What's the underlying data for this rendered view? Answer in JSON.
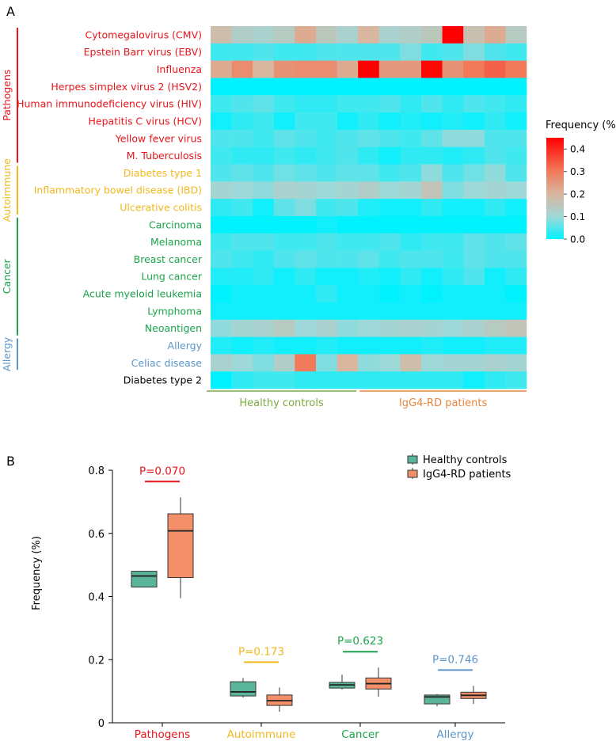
{
  "panels": {
    "a_label": "A",
    "b_label": "B"
  },
  "colors": {
    "pathogens": "#e8151b",
    "autoimmune": "#f2b81d",
    "cancer": "#1aa34a",
    "allergy": "#5b95c8",
    "other": "#000000",
    "healthy_group": "#7aaa3e",
    "igg4_group": "#e8853d",
    "box_healthy": "#5bb59a",
    "box_igg4": "#f3906a"
  },
  "chart_data": [
    {
      "type": "heatmap",
      "title": "",
      "colorbar": {
        "title": "Frequency (%)",
        "ticks": [
          0.0,
          0.1,
          0.2,
          0.3,
          0.4
        ],
        "tick_labels": [
          "0.0",
          "0.1",
          "0.2",
          "0.3",
          "0.4"
        ],
        "range": [
          0,
          0.45
        ]
      },
      "rows": [
        "Cytomegalovirus (CMV)",
        "Epstein Barr virus (EBV)",
        "Influenza",
        "Herpes simplex virus 2 (HSV2)",
        "Human immunodeficiency virus (HIV)",
        "Hepatitis C virus (HCV)",
        "Yellow fever virus",
        "M. Tuberculosis",
        "Diabetes type 1",
        "Inflammatory bowel disease (IBD)",
        "Ulcerative colitis",
        "Carcinoma",
        "Melanoma",
        "Breast cancer",
        "Lung cancer",
        "Acute myeloid leukemia",
        "Lymphoma",
        "Neoantigen",
        "Allergy",
        "Celiac disease",
        "Diabetes type 2"
      ],
      "row_category": [
        "pathogens",
        "pathogens",
        "pathogens",
        "pathogens",
        "pathogens",
        "pathogens",
        "pathogens",
        "pathogens",
        "autoimmune",
        "autoimmune",
        "autoimmune",
        "cancer",
        "cancer",
        "cancer",
        "cancer",
        "cancer",
        "cancer",
        "cancer",
        "allergy",
        "allergy",
        "other"
      ],
      "categories": [
        {
          "key": "pathogens",
          "label": "Pathogens",
          "first_row": 0,
          "last_row": 7
        },
        {
          "key": "autoimmune",
          "label": "Autoimmune",
          "first_row": 8,
          "last_row": 10
        },
        {
          "key": "cancer",
          "label": "Cancer",
          "first_row": 11,
          "last_row": 17
        },
        {
          "key": "allergy",
          "label": "Allergy",
          "first_row": 18,
          "last_row": 19
        }
      ],
      "groups": [
        {
          "key": "healthy",
          "label": "Healthy controls",
          "first_col": 0,
          "last_col": 6
        },
        {
          "key": "igg4",
          "label": "IgG4-RD patients",
          "first_col": 7,
          "last_col": 14
        }
      ],
      "values": [
        [
          0.18,
          0.13,
          0.12,
          0.14,
          0.22,
          0.15,
          0.12,
          0.2,
          0.12,
          0.13,
          0.15,
          0.45,
          0.17,
          0.22,
          0.14
        ],
        [
          0.04,
          0.04,
          0.05,
          0.04,
          0.04,
          0.05,
          0.05,
          0.05,
          0.05,
          0.08,
          0.04,
          0.05,
          0.08,
          0.05,
          0.04
        ],
        [
          0.22,
          0.27,
          0.2,
          0.26,
          0.27,
          0.27,
          0.22,
          0.45,
          0.25,
          0.25,
          0.44,
          0.26,
          0.3,
          0.33,
          0.3
        ],
        [
          0.0,
          0.0,
          0.0,
          0.0,
          0.0,
          0.0,
          0.0,
          0.0,
          0.0,
          0.0,
          0.0,
          0.0,
          0.0,
          0.0,
          0.0
        ],
        [
          0.04,
          0.05,
          0.06,
          0.04,
          0.03,
          0.03,
          0.04,
          0.04,
          0.05,
          0.03,
          0.05,
          0.03,
          0.05,
          0.04,
          0.03
        ],
        [
          0.01,
          0.03,
          0.04,
          0.01,
          0.04,
          0.04,
          0.01,
          0.03,
          0.01,
          0.02,
          0.01,
          0.02,
          0.01,
          0.03,
          0.01
        ],
        [
          0.05,
          0.05,
          0.04,
          0.06,
          0.05,
          0.04,
          0.05,
          0.06,
          0.05,
          0.04,
          0.06,
          0.09,
          0.09,
          0.05,
          0.05
        ],
        [
          0.04,
          0.03,
          0.03,
          0.04,
          0.03,
          0.04,
          0.05,
          0.03,
          0.01,
          0.03,
          0.03,
          0.02,
          0.03,
          0.05,
          0.04
        ],
        [
          0.05,
          0.06,
          0.05,
          0.07,
          0.06,
          0.05,
          0.06,
          0.06,
          0.04,
          0.05,
          0.09,
          0.05,
          0.07,
          0.09,
          0.05
        ],
        [
          0.11,
          0.1,
          0.09,
          0.12,
          0.11,
          0.1,
          0.11,
          0.13,
          0.1,
          0.11,
          0.16,
          0.08,
          0.1,
          0.11,
          0.1
        ],
        [
          0.03,
          0.04,
          0.01,
          0.06,
          0.08,
          0.04,
          0.05,
          0.02,
          0.01,
          0.01,
          0.03,
          0.01,
          0.01,
          0.03,
          0.01
        ],
        [
          0.0,
          0.0,
          0.0,
          0.0,
          0.0,
          0.01,
          0.0,
          0.0,
          0.0,
          0.0,
          0.0,
          0.0,
          0.0,
          0.0,
          0.0
        ],
        [
          0.04,
          0.05,
          0.05,
          0.04,
          0.04,
          0.05,
          0.04,
          0.04,
          0.05,
          0.03,
          0.04,
          0.04,
          0.06,
          0.05,
          0.06
        ],
        [
          0.05,
          0.04,
          0.03,
          0.05,
          0.06,
          0.05,
          0.05,
          0.06,
          0.04,
          0.05,
          0.05,
          0.04,
          0.06,
          0.05,
          0.05
        ],
        [
          0.02,
          0.02,
          0.03,
          0.01,
          0.03,
          0.01,
          0.01,
          0.02,
          0.01,
          0.03,
          0.01,
          0.03,
          0.05,
          0.01,
          0.03
        ],
        [
          0.0,
          0.01,
          0.01,
          0.01,
          0.01,
          0.03,
          0.01,
          0.01,
          0.0,
          0.01,
          0.0,
          0.01,
          0.01,
          0.01,
          0.0
        ],
        [
          0.01,
          0.01,
          0.01,
          0.01,
          0.01,
          0.01,
          0.01,
          0.01,
          0.01,
          0.01,
          0.01,
          0.01,
          0.01,
          0.01,
          0.01
        ],
        [
          0.09,
          0.11,
          0.12,
          0.14,
          0.1,
          0.12,
          0.09,
          0.1,
          0.11,
          0.12,
          0.11,
          0.1,
          0.12,
          0.14,
          0.16
        ],
        [
          0.02,
          0.01,
          0.02,
          0.01,
          0.01,
          0.02,
          0.01,
          0.01,
          0.01,
          0.01,
          0.02,
          0.01,
          0.01,
          0.02,
          0.02
        ],
        [
          0.12,
          0.1,
          0.08,
          0.13,
          0.3,
          0.08,
          0.2,
          0.09,
          0.1,
          0.18,
          0.1,
          0.11,
          0.11,
          0.12,
          0.11
        ],
        [
          0.0,
          0.03,
          0.04,
          0.04,
          0.03,
          0.03,
          0.03,
          0.03,
          0.03,
          0.03,
          0.03,
          0.03,
          0.01,
          0.03,
          0.04
        ]
      ]
    },
    {
      "type": "box",
      "title": "",
      "xlabel": "",
      "ylabel": "Frequency (%)",
      "ylim": [
        0,
        0.8
      ],
      "yticks": [
        0,
        0.2,
        0.4,
        0.6,
        0.8
      ],
      "ytick_labels": [
        "0",
        "0.2",
        "0.4",
        "0.6",
        "0.8"
      ],
      "categories": [
        "Pathogens",
        "Autoimmune",
        "Cancer",
        "Allergy"
      ],
      "category_keys": [
        "pathogens",
        "autoimmune",
        "cancer",
        "allergy"
      ],
      "p_values": [
        "P=0.070",
        "P=0.173",
        "P=0.623",
        "P=0.746"
      ],
      "legend": {
        "position": "top-right",
        "entries": [
          "Healthy controls",
          "IgG4-RD patients"
        ]
      },
      "series": [
        {
          "name": "Healthy controls",
          "boxes": [
            {
              "min": 0.43,
              "q1": 0.43,
              "median": 0.465,
              "q3": 0.48,
              "max": 0.48
            },
            {
              "min": 0.08,
              "q1": 0.085,
              "median": 0.098,
              "q3": 0.13,
              "max": 0.142
            },
            {
              "min": 0.105,
              "q1": 0.11,
              "median": 0.12,
              "q3": 0.128,
              "max": 0.152
            },
            {
              "min": 0.052,
              "q1": 0.06,
              "median": 0.082,
              "q3": 0.088,
              "max": 0.091
            }
          ]
        },
        {
          "name": "IgG4-RD patients",
          "boxes": [
            {
              "min": 0.395,
              "q1": 0.46,
              "median": 0.608,
              "q3": 0.662,
              "max": 0.714
            },
            {
              "min": 0.035,
              "q1": 0.055,
              "median": 0.07,
              "q3": 0.088,
              "max": 0.112
            },
            {
              "min": 0.083,
              "q1": 0.107,
              "median": 0.124,
              "q3": 0.142,
              "max": 0.175
            },
            {
              "min": 0.06,
              "q1": 0.077,
              "median": 0.087,
              "q3": 0.097,
              "max": 0.117
            }
          ]
        }
      ]
    }
  ]
}
